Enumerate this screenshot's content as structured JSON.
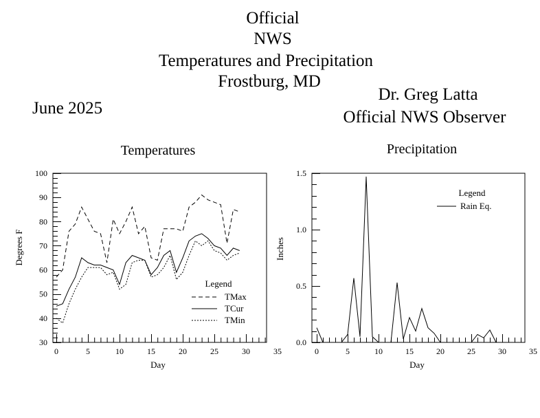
{
  "header": {
    "lines": [
      "Official",
      "NWS",
      "Temperatures and Precipitation",
      "Frostburg, MD"
    ],
    "month": "June 2025",
    "observer_name": "Dr. Greg Latta",
    "observer_title": "Official NWS Observer"
  },
  "chart_data": [
    {
      "type": "line",
      "title": "Temperatures",
      "xlabel": "Day",
      "ylabel": "Degrees F",
      "xlim": [
        0,
        35
      ],
      "ylim": [
        30,
        100
      ],
      "xticks": [
        "0",
        "5",
        "10",
        "15",
        "20",
        "25",
        "30",
        "35"
      ],
      "yticks": [
        "30",
        "40",
        "50",
        "60",
        "70",
        "80",
        "90",
        "100"
      ],
      "legend_title": "Legend",
      "legend_placement": "bottom-right",
      "x": [
        0,
        1,
        2,
        3,
        4,
        5,
        6,
        7,
        8,
        9,
        10,
        11,
        12,
        13,
        14,
        15,
        16,
        17,
        18,
        19,
        20,
        21,
        22,
        23,
        24,
        25,
        26,
        27,
        28,
        29
      ],
      "series": [
        {
          "name": "TMax",
          "style": "dashed",
          "values": [
            57,
            60,
            76,
            79,
            86,
            81,
            76,
            75,
            63,
            81,
            75,
            80,
            86,
            75,
            78,
            65,
            64,
            77,
            77,
            77,
            76,
            86,
            88,
            91,
            89,
            88,
            87,
            71,
            85,
            84
          ]
        },
        {
          "name": "TCur",
          "style": "solid",
          "values": [
            45,
            46,
            52,
            57,
            65,
            63,
            62,
            62,
            61,
            60,
            54,
            63,
            66,
            65,
            64,
            58,
            61,
            66,
            68,
            59,
            65,
            72,
            74,
            75,
            73,
            70,
            69,
            66,
            69,
            68
          ]
        },
        {
          "name": "TMin",
          "style": "dotted",
          "values": [
            40,
            38,
            46,
            52,
            57,
            61,
            61,
            61,
            58,
            59,
            52,
            54,
            63,
            64,
            64,
            57,
            58,
            61,
            66,
            56,
            59,
            66,
            72,
            70,
            72,
            68,
            67,
            64,
            66,
            67
          ]
        }
      ]
    },
    {
      "type": "line",
      "title": "Precipitation",
      "xlabel": "Day",
      "ylabel": "Inches",
      "xlim": [
        0,
        35
      ],
      "ylim": [
        0,
        1.5
      ],
      "xticks": [
        "0",
        "5",
        "10",
        "15",
        "20",
        "25",
        "30",
        "35"
      ],
      "yticks": [
        "0.0",
        "0.5",
        "1.0",
        "1.5"
      ],
      "legend_title": "Legend",
      "legend_placement": "top-right",
      "x": [
        0,
        1,
        2,
        3,
        4,
        5,
        6,
        7,
        8,
        9,
        10,
        11,
        12,
        13,
        14,
        15,
        16,
        17,
        18,
        19,
        20,
        21,
        22,
        23,
        24,
        25,
        26,
        27,
        28,
        29
      ],
      "series": [
        {
          "name": "Rain Eq.",
          "style": "solid",
          "values": [
            0.13,
            0,
            0,
            0,
            0,
            0.07,
            0.57,
            0.05,
            1.47,
            0.05,
            0,
            0,
            0,
            0.53,
            0.03,
            0.22,
            0.1,
            0.3,
            0.13,
            0.08,
            0,
            0,
            0,
            0,
            0,
            0,
            0.07,
            0.04,
            0.11,
            0
          ]
        }
      ]
    }
  ]
}
